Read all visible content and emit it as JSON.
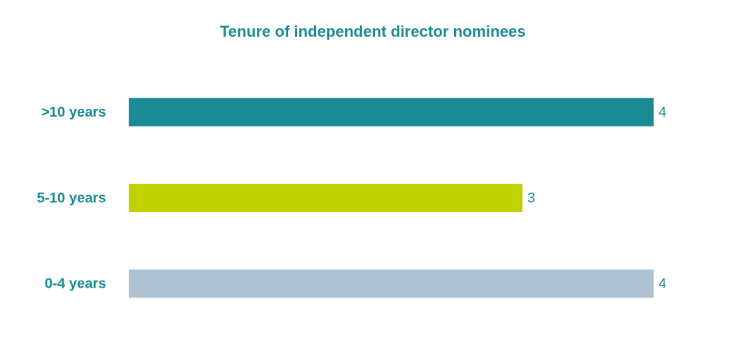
{
  "chart_data": {
    "type": "hbar",
    "title": "Tenure of independent director nominees",
    "categories": [
      ">10 years",
      "5-10 years",
      "0-4 years"
    ],
    "values": [
      4,
      3,
      4
    ],
    "colors": [
      "#1a8a94",
      "#bfd200",
      "#adc3d3"
    ]
  }
}
